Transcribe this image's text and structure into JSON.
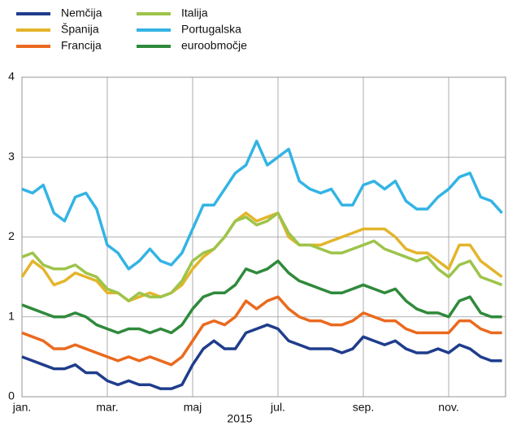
{
  "chart_data": {
    "type": "line",
    "xlabel": "2015",
    "categories": [
      "jan.",
      null,
      null,
      null,
      null,
      null,
      null,
      null,
      "mar.",
      null,
      null,
      null,
      null,
      null,
      null,
      null,
      "maj",
      null,
      null,
      null,
      null,
      null,
      null,
      null,
      "jul.",
      null,
      null,
      null,
      null,
      null,
      null,
      null,
      "sep.",
      null,
      null,
      null,
      null,
      null,
      null,
      null,
      "nov.",
      null,
      null,
      null,
      null,
      null
    ],
    "ylim": [
      0,
      4
    ],
    "yticks": [
      0,
      1,
      2,
      3,
      4
    ],
    "grid": true,
    "series": [
      {
        "name": "Nemčija",
        "color": "#1f3d8c",
        "values": [
          0.5,
          0.45,
          0.4,
          0.35,
          0.35,
          0.4,
          0.3,
          0.3,
          0.2,
          0.15,
          0.2,
          0.15,
          0.15,
          0.1,
          0.1,
          0.15,
          0.4,
          0.6,
          0.7,
          0.6,
          0.6,
          0.8,
          0.85,
          0.9,
          0.85,
          0.7,
          0.65,
          0.6,
          0.6,
          0.6,
          0.55,
          0.6,
          0.75,
          0.7,
          0.65,
          0.7,
          0.6,
          0.55,
          0.55,
          0.6,
          0.55,
          0.65,
          0.6,
          0.5,
          0.45,
          0.45
        ]
      },
      {
        "name": "Španija",
        "color": "#e3b52b",
        "values": [
          1.5,
          1.7,
          1.6,
          1.4,
          1.45,
          1.55,
          1.5,
          1.45,
          1.3,
          1.3,
          1.2,
          1.25,
          1.3,
          1.25,
          1.3,
          1.4,
          1.6,
          1.75,
          1.85,
          2.0,
          2.2,
          2.3,
          2.2,
          2.25,
          2.3,
          2.0,
          1.9,
          1.9,
          1.9,
          1.95,
          2.0,
          2.05,
          2.1,
          2.1,
          2.1,
          2.0,
          1.85,
          1.8,
          1.8,
          1.7,
          1.6,
          1.9,
          1.9,
          1.7,
          1.6,
          1.5
        ]
      },
      {
        "name": "Francija",
        "color": "#ea6a1f",
        "values": [
          0.8,
          0.75,
          0.7,
          0.6,
          0.6,
          0.65,
          0.6,
          0.55,
          0.5,
          0.45,
          0.5,
          0.45,
          0.5,
          0.45,
          0.4,
          0.5,
          0.7,
          0.9,
          0.95,
          0.9,
          1.0,
          1.2,
          1.1,
          1.2,
          1.25,
          1.1,
          1.0,
          0.95,
          0.95,
          0.9,
          0.9,
          0.95,
          1.05,
          1.0,
          0.95,
          0.95,
          0.85,
          0.8,
          0.8,
          0.8,
          0.8,
          0.95,
          0.95,
          0.85,
          0.8,
          0.8
        ]
      },
      {
        "name": "Italija",
        "color": "#9dc44a",
        "values": [
          1.75,
          1.8,
          1.65,
          1.6,
          1.6,
          1.65,
          1.55,
          1.5,
          1.35,
          1.3,
          1.2,
          1.3,
          1.25,
          1.25,
          1.3,
          1.45,
          1.7,
          1.8,
          1.85,
          2.0,
          2.2,
          2.25,
          2.15,
          2.2,
          2.3,
          2.05,
          1.9,
          1.9,
          1.85,
          1.8,
          1.8,
          1.85,
          1.9,
          1.95,
          1.85,
          1.8,
          1.75,
          1.7,
          1.75,
          1.6,
          1.5,
          1.65,
          1.7,
          1.5,
          1.45,
          1.4
        ]
      },
      {
        "name": "Portugalska",
        "color": "#33b4e4",
        "values": [
          2.6,
          2.55,
          2.65,
          2.3,
          2.2,
          2.5,
          2.55,
          2.35,
          1.9,
          1.8,
          1.6,
          1.7,
          1.85,
          1.7,
          1.65,
          1.8,
          2.1,
          2.4,
          2.4,
          2.6,
          2.8,
          2.9,
          3.2,
          2.9,
          3.0,
          3.1,
          2.7,
          2.6,
          2.55,
          2.6,
          2.4,
          2.4,
          2.65,
          2.7,
          2.6,
          2.7,
          2.45,
          2.35,
          2.35,
          2.5,
          2.6,
          2.75,
          2.8,
          2.5,
          2.45,
          2.3
        ]
      },
      {
        "name": "euroobmočje",
        "color": "#2f8a3b",
        "values": [
          1.15,
          1.1,
          1.05,
          1.0,
          1.0,
          1.05,
          1.0,
          0.9,
          0.85,
          0.8,
          0.85,
          0.85,
          0.8,
          0.85,
          0.8,
          0.9,
          1.1,
          1.25,
          1.3,
          1.3,
          1.4,
          1.6,
          1.55,
          1.6,
          1.7,
          1.55,
          1.45,
          1.4,
          1.35,
          1.3,
          1.3,
          1.35,
          1.4,
          1.35,
          1.3,
          1.35,
          1.2,
          1.1,
          1.05,
          1.05,
          1.0,
          1.2,
          1.25,
          1.05,
          1.0,
          1.0
        ]
      }
    ]
  }
}
